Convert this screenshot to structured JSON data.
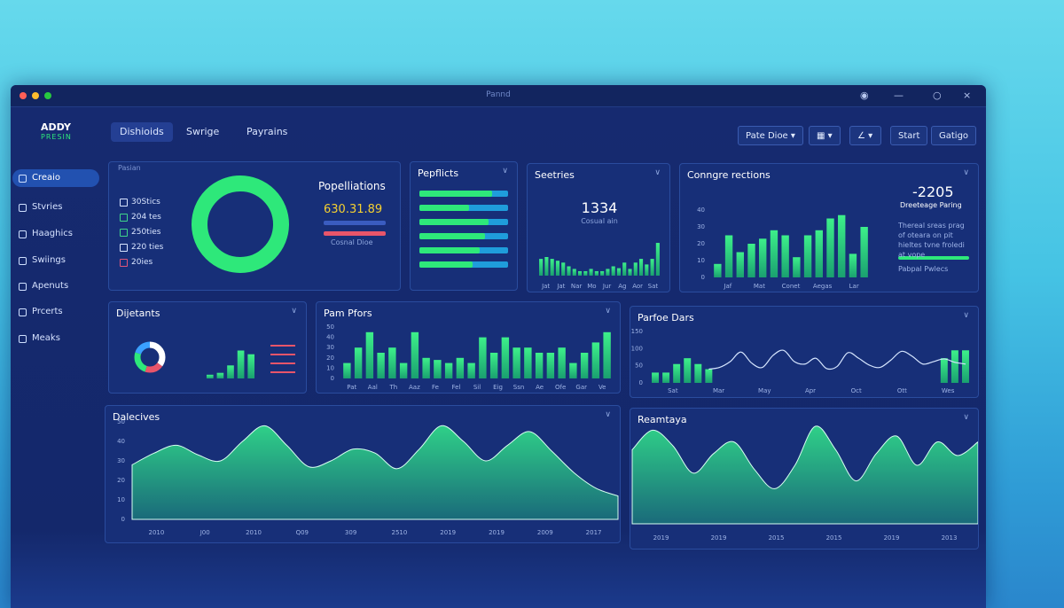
{
  "window": {
    "title": "Pannd"
  },
  "brand": {
    "name": "ADDY",
    "tagline": "PRESIN"
  },
  "tabs": [
    "Dishioids",
    "Swrige",
    "Payrains"
  ],
  "toolbar": [
    "Pate Dioe ▾",
    "Start",
    "Gatigo"
  ],
  "sidebar": [
    "Creaio",
    "Stvries",
    "Haaghics",
    "Swiings",
    "Apenuts",
    "Prcerts",
    "Meaks"
  ],
  "panels": [
    {
      "title": "Popelliations",
      "caption": "Pasian",
      "value": "630.31.89",
      "subtitle": "Cosnal Dioe",
      "legend": [
        "30Stics",
        "204 tes",
        "250ties",
        "220 ties",
        "20ies"
      ],
      "chart": {
        "type": "donut",
        "values": [
          100
        ],
        "colors": [
          "#2ee87a"
        ]
      }
    },
    {
      "title": "Pepflicts",
      "chart": {
        "type": "hbar",
        "values": [
          82,
          56,
          78,
          74,
          68,
          60
        ],
        "xlim": [
          0,
          100
        ],
        "color": "#2ee87a",
        "track": "#1f9ddb"
      }
    },
    {
      "title": "Seetries",
      "value": "1334",
      "subtitle": "Cosual ain",
      "chart": {
        "type": "bar",
        "values": [
          45,
          50,
          45,
          40,
          35,
          25,
          18,
          12,
          12,
          18,
          12,
          12,
          18,
          25,
          20,
          35,
          18,
          35,
          45,
          30,
          45,
          88
        ],
        "ylim": [
          0,
          100
        ],
        "color": "#2bb8e0",
        "xlabels": [
          "Jat",
          "Jat",
          "Nar",
          "Mo",
          "Jur",
          "Ag",
          "Aor",
          "Sat"
        ]
      }
    },
    {
      "title": "Conngre rections",
      "value": "-2205",
      "subtitle": "Dreeteage Paring",
      "note": "Thereal sreas prag of oteara on pit hieltes tvne froledi at vope",
      "footer": "Pabpal Pwlecs",
      "chart": {
        "type": "bar",
        "values": [
          8,
          25,
          15,
          20,
          23,
          28,
          25,
          12,
          25,
          28,
          35,
          37,
          14,
          30
        ],
        "ylim": [
          0,
          40
        ],
        "yticks": [
          0,
          10,
          20,
          30,
          40
        ],
        "color": "#2ee87a",
        "xlabels": [
          "Jaf",
          "Mat",
          "Conet",
          "Aegas",
          "Lar"
        ]
      }
    },
    {
      "title": "Dijetants",
      "chart": {
        "type": "donut-bars",
        "values": [
          35,
          20,
          25,
          20
        ],
        "colors": [
          "#ffffff",
          "#e8556a",
          "#2ee87a",
          "#3aa0ff"
        ],
        "bars": [
          4,
          6,
          14,
          30,
          26
        ],
        "ylim": [
          0,
          40
        ],
        "color": "#2ee87a"
      }
    },
    {
      "title": "Pam Pfors",
      "chart": {
        "type": "bar",
        "values": [
          15,
          30,
          45,
          25,
          30,
          15,
          45,
          20,
          18,
          15,
          20,
          15,
          40,
          25,
          40,
          30,
          30,
          25,
          25,
          30,
          15,
          25,
          35,
          45
        ],
        "ylim": [
          0,
          50
        ],
        "yticks": [
          0,
          10,
          20,
          30,
          40,
          50
        ],
        "color": "#2ee87a",
        "xlabels": [
          "Pat",
          "Aal",
          "Th",
          "Aaz",
          "Fe",
          "Fel",
          "Sil",
          "Eig",
          "Ssn",
          "Ae",
          "Ofe",
          "Gar",
          "Ve"
        ]
      }
    },
    {
      "title": "Parfoe Dars",
      "chart": {
        "type": "combo",
        "bars": [
          30,
          30,
          55,
          72,
          55,
          40,
          null,
          null,
          null,
          null,
          null,
          null,
          null,
          null,
          null,
          null,
          null,
          null,
          null,
          null,
          null,
          null,
          null,
          null,
          null,
          null,
          null,
          72,
          95,
          95
        ],
        "line": [
          null,
          null,
          null,
          null,
          null,
          40,
          45,
          62,
          90,
          58,
          45,
          80,
          95,
          62,
          55,
          72,
          42,
          48,
          88,
          72,
          52,
          45,
          66,
          92,
          78,
          55,
          62,
          70,
          60,
          55
        ],
        "ylim": [
          0,
          150
        ],
        "yticks": [
          0,
          50,
          100,
          150
        ],
        "color": "#2ee87a",
        "xlabels": [
          "Sat",
          "Mar",
          "May",
          "Apr",
          "Oct",
          "Ott",
          "Wes"
        ]
      }
    },
    {
      "title": "Dalecives",
      "chart": {
        "type": "area",
        "values": [
          28,
          34,
          38,
          33,
          30,
          40,
          48,
          38,
          27,
          30,
          36,
          34,
          26,
          36,
          48,
          40,
          30,
          38,
          45,
          35,
          24,
          16,
          12
        ],
        "ylim": [
          0,
          50
        ],
        "yticks": [
          0,
          10,
          20,
          30,
          40,
          50
        ],
        "color": "#2ee87a",
        "xlabels": [
          "2010",
          "J00",
          "2010",
          "Q09",
          "309",
          "2510",
          "2019",
          "2019",
          "2009",
          "2017"
        ]
      }
    },
    {
      "title": "Reamtaya",
      "chart": {
        "type": "area",
        "values": [
          38,
          48,
          40,
          26,
          36,
          42,
          28,
          18,
          30,
          50,
          38,
          22,
          36,
          45,
          30,
          42,
          35,
          42
        ],
        "ylim": [
          0,
          50
        ],
        "color": "#2ee87a",
        "xlabels": [
          "2019",
          "2019",
          "2015",
          "2015",
          "2019",
          "2013"
        ]
      }
    }
  ]
}
